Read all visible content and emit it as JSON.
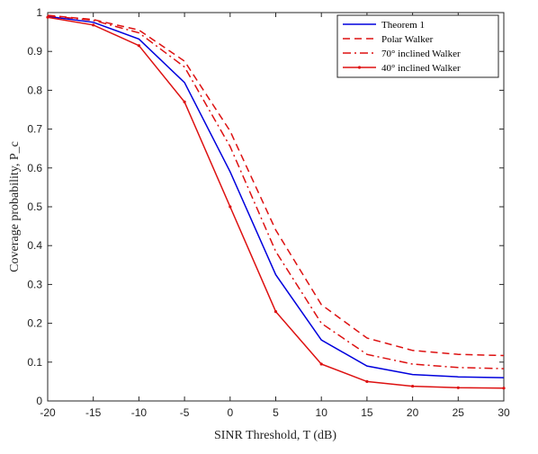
{
  "chart_data": {
    "type": "line",
    "xlabel": "SINR Threshold, T (dB)",
    "ylabel": "Coverage probability, P_c",
    "xlim": [
      -20,
      30
    ],
    "ylim": [
      0,
      1
    ],
    "xticks": [
      -20,
      -15,
      -10,
      -5,
      0,
      5,
      10,
      15,
      20,
      25,
      30
    ],
    "yticks": [
      0,
      0.1,
      0.2,
      0.3,
      0.4,
      0.5,
      0.6,
      0.7,
      0.8,
      0.9,
      1
    ],
    "grid": false,
    "legend_position": "top-right",
    "x": [
      -20,
      -15,
      -10,
      -5,
      0,
      5,
      10,
      15,
      20,
      25,
      30
    ],
    "series": [
      {
        "name": "Theorem 1",
        "color": "#0000dd",
        "style": "solid",
        "values": [
          0.99,
          0.975,
          0.932,
          0.82,
          0.59,
          0.325,
          0.157,
          0.09,
          0.068,
          0.062,
          0.06
        ]
      },
      {
        "name": "Polar Walker",
        "color": "#dd1111",
        "style": "dashed",
        "values": [
          0.993,
          0.982,
          0.955,
          0.875,
          0.695,
          0.44,
          0.248,
          0.162,
          0.13,
          0.12,
          0.117
        ]
      },
      {
        "name": "70° inclined Walker",
        "color": "#dd1111",
        "style": "dashdot",
        "values": [
          0.992,
          0.98,
          0.948,
          0.86,
          0.655,
          0.385,
          0.2,
          0.12,
          0.095,
          0.086,
          0.083
        ]
      },
      {
        "name": "40° inclined Walker",
        "color": "#dd1111",
        "style": "solid-dot",
        "values": [
          0.988,
          0.968,
          0.915,
          0.77,
          0.5,
          0.23,
          0.095,
          0.05,
          0.038,
          0.034,
          0.033
        ]
      }
    ]
  }
}
